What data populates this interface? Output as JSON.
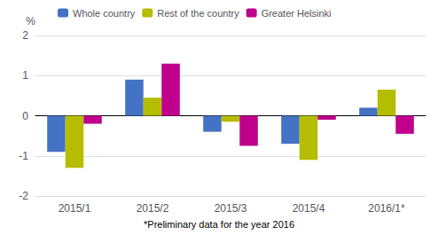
{
  "chart_data": {
    "type": "bar",
    "categories": [
      "2015/1",
      "2015/2",
      "2015/3",
      "2015/4",
      "2016/1*"
    ],
    "series": [
      {
        "name": "Whole country",
        "color": "#4472c4",
        "values": [
          -0.9,
          0.9,
          -0.4,
          -0.7,
          0.2
        ]
      },
      {
        "name": "Rest of the country",
        "color": "#b5bd00",
        "values": [
          -1.3,
          0.45,
          -0.15,
          -1.1,
          0.65
        ]
      },
      {
        "name": "Greater Helsinki",
        "color": "#c0008c",
        "values": [
          -0.2,
          1.3,
          -0.75,
          -0.1,
          -0.45
        ]
      }
    ],
    "ylabel": "%",
    "annotations": [
      "*Preliminary data for the year 2016"
    ],
    "ylim": [
      -2,
      2
    ],
    "yticks": [
      -2,
      -1,
      0,
      1,
      2
    ],
    "grid": true,
    "legend": "upper left"
  }
}
